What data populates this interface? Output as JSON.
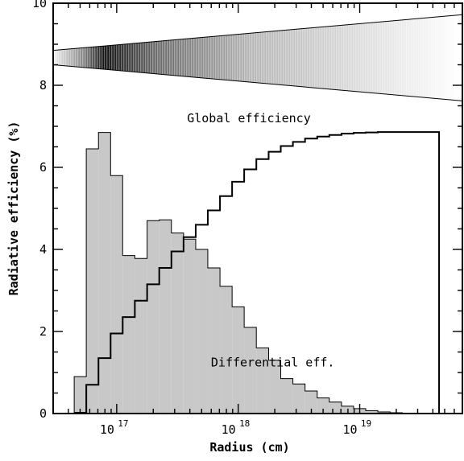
{
  "chart_data": {
    "type": "bar",
    "xlabel": "Radius (cm)",
    "ylabel": "Radiative efficiency (%)",
    "xscale": "log",
    "xlim": [
      3e+16,
      7e+19
    ],
    "ylim": [
      0,
      10
    ],
    "grid": false,
    "xticks": [
      {
        "mantissa": "10",
        "exponent": "17",
        "value": 1e+17
      },
      {
        "mantissa": "10",
        "exponent": "18",
        "value": 1e+18
      },
      {
        "mantissa": "10",
        "exponent": "19",
        "value": 1e+19
      }
    ],
    "yticks": [
      {
        "label": "0",
        "value": 0
      },
      {
        "label": "2",
        "value": 2
      },
      {
        "label": "4",
        "value": 4
      },
      {
        "label": "6",
        "value": 6
      },
      {
        "label": "8",
        "value": 8
      },
      {
        "label": "10",
        "value": 10
      }
    ],
    "bin_edges": [
      4.47e+16,
      5.62e+16,
      7.08e+16,
      8.91e+16,
      1.12e+17,
      1.41e+17,
      1.78e+17,
      2.24e+17,
      2.82e+17,
      3.55e+17,
      4.47e+17,
      5.62e+17,
      7.08e+17,
      8.91e+17,
      1.12e+18,
      1.41e+18,
      1.78e+18,
      2.24e+18,
      2.82e+18,
      3.55e+18,
      4.47e+18,
      5.62e+18,
      7.08e+18,
      8.91e+18,
      1.12e+19,
      1.41e+19,
      1.78e+19,
      2.24e+19,
      4.5e+19
    ],
    "series": [
      {
        "name": "Differential eff.",
        "style": "filled-step",
        "fill": "#c8c8c8",
        "values": [
          0.9,
          6.45,
          6.85,
          5.8,
          3.85,
          3.78,
          4.7,
          4.72,
          4.4,
          4.25,
          4.0,
          3.55,
          3.1,
          2.6,
          2.1,
          1.6,
          1.3,
          0.85,
          0.72,
          0.55,
          0.38,
          0.28,
          0.18,
          0.12,
          0.07,
          0.04,
          0.02,
          0.0
        ]
      },
      {
        "name": "Global efficiency",
        "style": "step-line",
        "values": [
          0.02,
          0.7,
          1.35,
          1.95,
          2.35,
          2.75,
          3.15,
          3.55,
          3.95,
          4.3,
          4.6,
          4.95,
          5.3,
          5.65,
          5.95,
          6.2,
          6.38,
          6.52,
          6.62,
          6.7,
          6.75,
          6.79,
          6.82,
          6.84,
          6.85,
          6.86,
          6.86,
          6.86
        ]
      }
    ],
    "annotations": [
      {
        "text": "Global efficiency",
        "x": 4.5e+18,
        "y": 7.2
      },
      {
        "text": "Differential eff.",
        "x": 3.2e+18,
        "y": 1.25
      }
    ],
    "wedge": {
      "top_left": 8.85,
      "top_right": 9.72,
      "bottom_left": 8.5,
      "bottom_right": 7.62,
      "gradient_peak_x": 8e+16
    }
  }
}
